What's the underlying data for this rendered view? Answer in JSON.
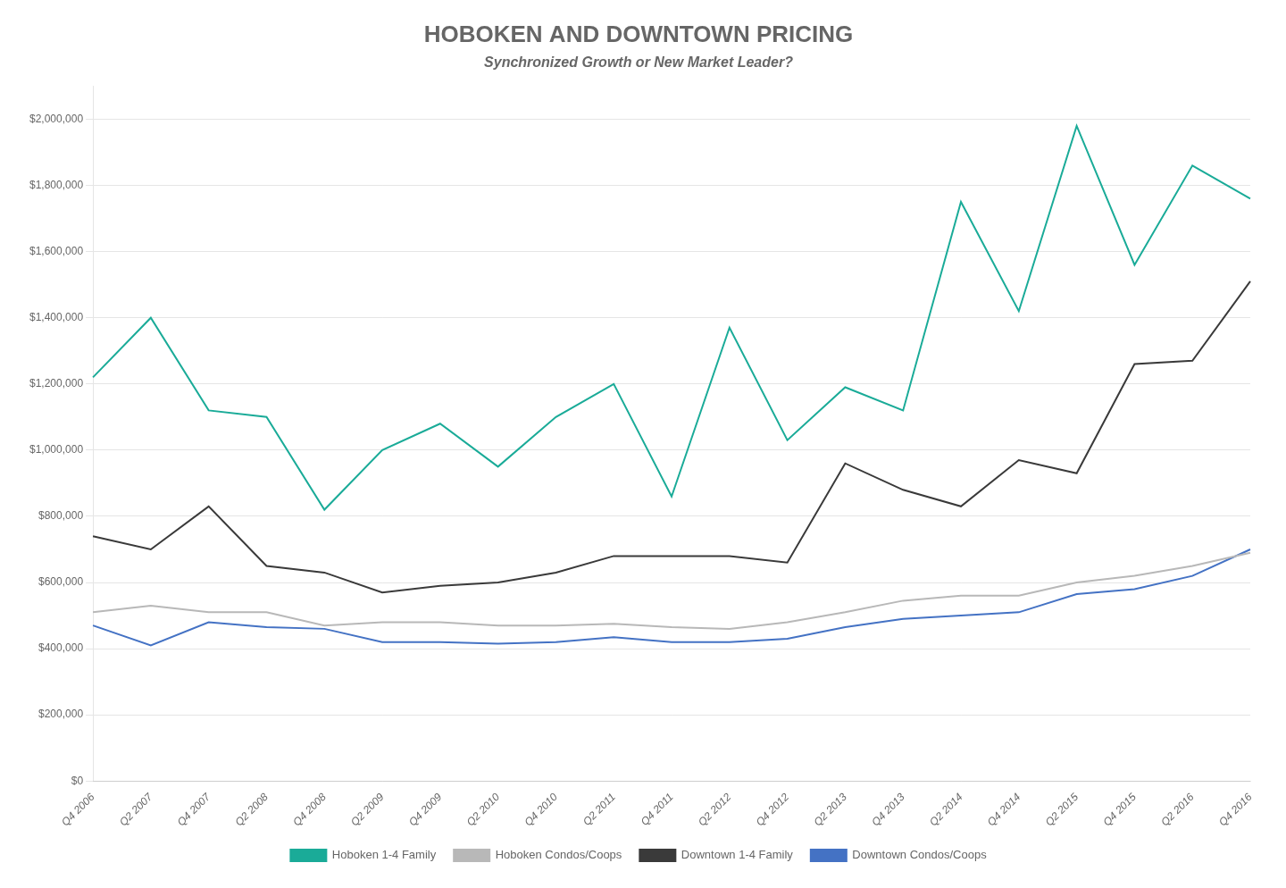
{
  "chart_data": {
    "type": "line",
    "title": "HOBOKEN AND DOWNTOWN PRICING",
    "subtitle": "Synchronized Growth or New Market Leader?",
    "categories": [
      "Q4 2006",
      "Q2 2007",
      "Q4 2007",
      "Q2 2008",
      "Q4 2008",
      "Q2 2009",
      "Q4 2009",
      "Q2 2010",
      "Q4 2010",
      "Q2 2011",
      "Q4 2011",
      "Q2 2012",
      "Q4 2012",
      "Q2 2013",
      "Q4 2013",
      "Q2 2014",
      "Q4 2014",
      "Q2 2015",
      "Q4 2015",
      "Q2 2016",
      "Q4 2016"
    ],
    "series": [
      {
        "name": "Hoboken 1-4 Family",
        "color": "#1aab98",
        "values": [
          1220000,
          1400000,
          1120000,
          1100000,
          820000,
          1000000,
          1080000,
          950000,
          1100000,
          1200000,
          860000,
          1370000,
          1030000,
          1190000,
          1120000,
          1750000,
          1420000,
          1980000,
          1560000,
          1860000,
          1760000
        ]
      },
      {
        "name": "Hoboken Condos/Coops",
        "color": "#b8b8b8",
        "values": [
          510000,
          530000,
          510000,
          510000,
          470000,
          480000,
          480000,
          470000,
          470000,
          475000,
          465000,
          460000,
          480000,
          510000,
          545000,
          560000,
          560000,
          600000,
          620000,
          650000,
          690000
        ]
      },
      {
        "name": "Downtown 1-4 Family",
        "color": "#3a3a3a",
        "values": [
          740000,
          700000,
          830000,
          650000,
          630000,
          570000,
          590000,
          600000,
          630000,
          680000,
          680000,
          680000,
          660000,
          960000,
          880000,
          830000,
          970000,
          930000,
          1260000,
          1270000,
          1510000
        ]
      },
      {
        "name": "Downtown Condos/Coops",
        "color": "#4472c4",
        "values": [
          470000,
          410000,
          480000,
          465000,
          460000,
          420000,
          420000,
          415000,
          420000,
          435000,
          420000,
          420000,
          430000,
          465000,
          490000,
          500000,
          510000,
          565000,
          580000,
          620000,
          700000
        ]
      }
    ],
    "ylim": [
      0,
      2100000
    ],
    "yticks": [
      {
        "value": 0,
        "label": "$0"
      },
      {
        "value": 200000,
        "label": "$200,000"
      },
      {
        "value": 400000,
        "label": "$400,000"
      },
      {
        "value": 600000,
        "label": "$600,000"
      },
      {
        "value": 800000,
        "label": "$800,000"
      },
      {
        "value": 1000000,
        "label": "$1,000,000"
      },
      {
        "value": 1200000,
        "label": "$1,200,000"
      },
      {
        "value": 1400000,
        "label": "$1,400,000"
      },
      {
        "value": 1600000,
        "label": "$1,600,000"
      },
      {
        "value": 1800000,
        "label": "$1,800,000"
      },
      {
        "value": 2000000,
        "label": "$2,000,000"
      }
    ],
    "grid": true,
    "legend": "bottom"
  }
}
